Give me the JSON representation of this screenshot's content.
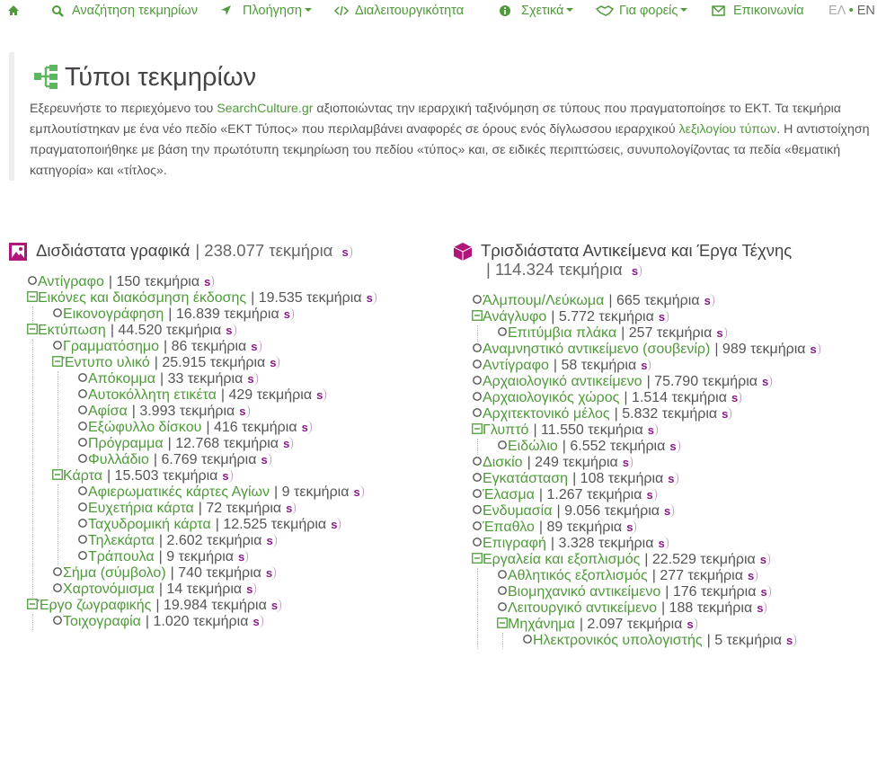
{
  "nav": {
    "items": [
      "Αναζήτηση τεκμηρίων",
      "Πλοήγηση",
      "Διαλειτουργικότητα",
      "Σχετικά",
      "Για φορείς",
      "Επικοινωνία"
    ],
    "lang": [
      "ΕΛ",
      "•",
      "EN"
    ]
  },
  "header": {
    "title": "Τύποι τεκμηρίων",
    "intro": [
      {
        "text": "Εξερευνήστε το περιεχόμενο του "
      },
      {
        "text": "SearchCulture.gr",
        "link": true
      },
      {
        "text": " αξιοποιώντας την ιεραρχική ταξινόμηση σε τύπους που πραγματοποίησε το ΕΚΤ. Τα τεκμήρια εμπλουτίστηκαν με ένα νέο πεδίο «ΕΚΤ Τύπος» που περιλαμβάνει αναφορές σε όρους ενός δίγλωσσου ιεραρχικού "
      },
      {
        "text": "λεξιλογίου τύπων",
        "link": true
      },
      {
        "text": ". Η αντιστοίχηση πραγματοποιήθηκε με βάση την πρωτότυπη τεκμηρίωση του πεδίου «τύπος» και, σε ειδικές περιπτώσεις, συνυπολογίζοντας τα πεδία «θεματική κατηγορία» και «τίτλος»."
      }
    ]
  },
  "badge": "s",
  "columns": [
    {
      "title": "Δισδιάστατα γραφικά",
      "count": "| 238.077 τεκμήρια",
      "tree": [
        {
          "label": "Αντίγραφο",
          "count": "| 150 τεκμήρια"
        },
        {
          "label": "Εικόνες και διακόσμηση έκδοσης",
          "count": "| 19.535 τεκμήρια",
          "children": [
            {
              "label": "Εικονογράφηση",
              "count": "| 16.839 τεκμήρια"
            }
          ]
        },
        {
          "label": "Εκτύπωση",
          "count": "| 44.520 τεκμήρια",
          "children": [
            {
              "label": "Γραμματόσημο",
              "count": "| 86 τεκμήρια"
            },
            {
              "label": "Έντυπο υλικό",
              "count": "| 25.915 τεκμήρια",
              "children": [
                {
                  "label": "Απόκομμα",
                  "count": "| 33 τεκμήρια"
                },
                {
                  "label": "Αυτοκόλλητη ετικέτα",
                  "count": "| 429 τεκμήρια"
                },
                {
                  "label": "Αφίσα",
                  "count": "| 3.993 τεκμήρια"
                },
                {
                  "label": "Εξώφυλλο δίσκου",
                  "count": "| 416 τεκμήρια"
                },
                {
                  "label": "Πρόγραμμα",
                  "count": "| 12.768 τεκμήρια"
                },
                {
                  "label": "Φυλλάδιο",
                  "count": "| 6.769 τεκμήρια"
                }
              ]
            },
            {
              "label": "Κάρτα",
              "count": "| 15.503 τεκμήρια",
              "children": [
                {
                  "label": "Αφιερωματικές κάρτες Αγίων",
                  "count": "| 9 τεκμήρια"
                },
                {
                  "label": "Ευχετήρια κάρτα",
                  "count": "| 72 τεκμήρια"
                },
                {
                  "label": "Ταχυδρομική κάρτα",
                  "count": "| 12.525 τεκμήρια"
                },
                {
                  "label": "Τηλεκάρτα",
                  "count": "| 2.602 τεκμήρια"
                },
                {
                  "label": "Τράπουλα",
                  "count": "| 9 τεκμήρια"
                }
              ]
            },
            {
              "label": "Σήμα (σύμβολο)",
              "count": "| 740 τεκμήρια"
            },
            {
              "label": "Χαρτονόμισμα",
              "count": "| 14 τεκμήρια"
            }
          ]
        },
        {
          "label": "Έργο ζωγραφικής",
          "count": "| 19.984 τεκμήρια",
          "children": [
            {
              "label": "Τοιχογραφία",
              "count": "| 1.020 τεκμήρια"
            }
          ]
        }
      ]
    },
    {
      "title": "Τρισδιάστατα Αντικείμενα και Έργα Τέχνης",
      "count": "| 114.324 τεκμήρια",
      "tree": [
        {
          "label": "Άλμπουμ/Λεύκωμα",
          "count": "| 665 τεκμήρια"
        },
        {
          "label": "Ανάγλυφο",
          "count": "| 5.772 τεκμήρια",
          "children": [
            {
              "label": "Επιτύμβια πλάκα",
              "count": "| 257 τεκμήρια"
            }
          ]
        },
        {
          "label": "Αναμνηστικό αντικείμενο (σουβενίρ)",
          "count": "| 989 τεκμήρια"
        },
        {
          "label": "Αντίγραφο",
          "count": "| 58 τεκμήρια"
        },
        {
          "label": "Αρχαιολογικό αντικείμενο",
          "count": "| 75.790 τεκμήρια"
        },
        {
          "label": "Αρχαιολογικός χώρος",
          "count": "| 1.514 τεκμήρια"
        },
        {
          "label": "Αρχιτεκτονικό μέλος",
          "count": "| 5.832 τεκμήρια"
        },
        {
          "label": "Γλυπτό",
          "count": "| 11.550 τεκμήρια",
          "children": [
            {
              "label": "Ειδώλιο",
              "count": "| 6.552 τεκμήρια"
            }
          ]
        },
        {
          "label": "Δισκίο",
          "count": "| 249 τεκμήρια"
        },
        {
          "label": "Εγκατάσταση",
          "count": "| 108 τεκμήρια"
        },
        {
          "label": "Έλασμα",
          "count": "| 1.267 τεκμήρια"
        },
        {
          "label": "Ενδυμασία",
          "count": "| 9.056 τεκμήρια"
        },
        {
          "label": "Έπαθλο",
          "count": "| 89 τεκμήρια"
        },
        {
          "label": "Επιγραφή",
          "count": "| 3.328 τεκμήρια"
        },
        {
          "label": "Εργαλεία και εξοπλισμός",
          "count": "| 22.529 τεκμήρια",
          "children": [
            {
              "label": "Αθλητικός εξοπλισμός",
              "count": "| 277 τεκμήρια"
            },
            {
              "label": "Βιομηχανικό αντικείμενο",
              "count": "| 176 τεκμήρια"
            },
            {
              "label": "Λειτουργικό αντικείμενο",
              "count": "| 188 τεκμήρια"
            },
            {
              "label": "Μηχάνημα",
              "count": "| 2.097 τεκμήρια",
              "children": [
                {
                  "label": "Ηλεκτρονικός υπολογιστής",
                  "count": "| 5 τεκμήρια"
                }
              ]
            }
          ]
        }
      ]
    }
  ]
}
